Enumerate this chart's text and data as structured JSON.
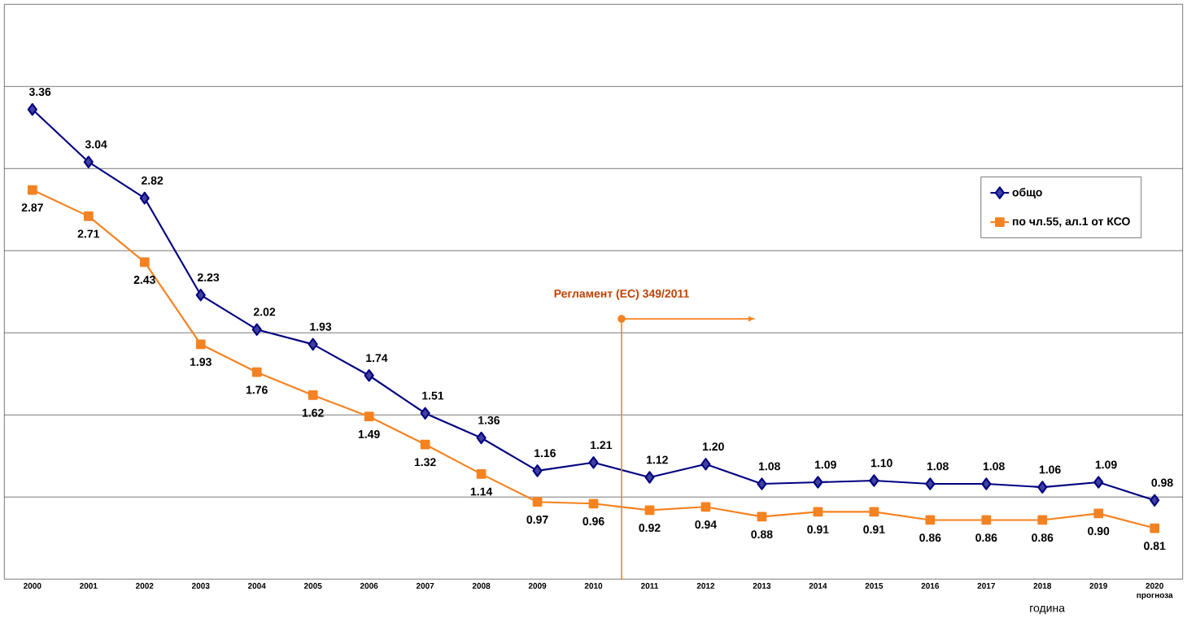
{
  "chart_data": {
    "type": "line",
    "xlabel": "година",
    "x": [
      2000,
      2001,
      2002,
      2003,
      2004,
      2005,
      2006,
      2007,
      2008,
      2009,
      2010,
      2011,
      2012,
      2013,
      2014,
      2015,
      2016,
      2017,
      2018,
      2019,
      2020
    ],
    "xlim": [
      1999.5,
      2020.5
    ],
    "xticks": [
      2000,
      2001,
      2002,
      2003,
      2004,
      2005,
      2006,
      2007,
      2008,
      2009,
      2010,
      2011,
      2012,
      2013,
      2014,
      2015,
      2016,
      2017,
      2018,
      2019,
      {
        "value": 2020,
        "label": "2020 прогноза"
      }
    ],
    "ylim": [
      0.5,
      4.0
    ],
    "yticks": [
      {
        "value": 1.0,
        "label": null
      },
      {
        "value": 1.5,
        "label": null
      },
      {
        "value": 2.0,
        "label": null
      },
      {
        "value": 2.5,
        "label": null
      },
      {
        "value": 3.0,
        "label": null
      },
      {
        "value": 3.5,
        "label": null
      }
    ],
    "tick_labels": "x",
    "grid": "y",
    "legend": "top right",
    "series": [
      {
        "name": "общо",
        "color": "#000080",
        "marker": "diamond",
        "values": [
          3.36,
          3.04,
          2.82,
          2.23,
          2.02,
          1.93,
          1.74,
          1.51,
          1.36,
          1.16,
          1.21,
          1.12,
          1.2,
          1.08,
          1.09,
          1.1,
          1.08,
          1.08,
          1.06,
          1.09,
          0.98
        ],
        "value_labels": [
          "3.36",
          "3.04",
          "2.82",
          "2.23",
          "2.02",
          "1.93",
          "1.74",
          "1.51",
          "1.36",
          "1.16",
          "1.21",
          "1.12",
          "1.20",
          "1.08",
          "1.09",
          "1.10",
          "1.08",
          "1.08",
          "1.06",
          "1.09",
          "0.98"
        ]
      },
      {
        "name": "по чл.55, ал.1 от КСО",
        "color": "#f58220",
        "marker": "square",
        "values": [
          2.87,
          2.71,
          2.43,
          1.93,
          1.76,
          1.62,
          1.49,
          1.32,
          1.14,
          0.97,
          0.96,
          0.92,
          0.94,
          0.88,
          0.91,
          0.91,
          0.86,
          0.86,
          0.86,
          0.9,
          0.81
        ],
        "value_labels": [
          "2.87",
          "2.71",
          "2.43",
          "1.93",
          "1.76",
          "1.62",
          "1.49",
          "1.32",
          "1.14",
          "0.97",
          "0.96",
          "0.92",
          "0.94",
          "0.88",
          "0.91",
          "0.91",
          "0.86",
          "0.86",
          "0.86",
          "0.90",
          "0.81"
        ]
      }
    ],
    "ref_lines": [
      {
        "axis": "x",
        "value": 2010.5,
        "label": "Регламент (ЕС) 349/2011",
        "color": "#f58220"
      }
    ]
  }
}
